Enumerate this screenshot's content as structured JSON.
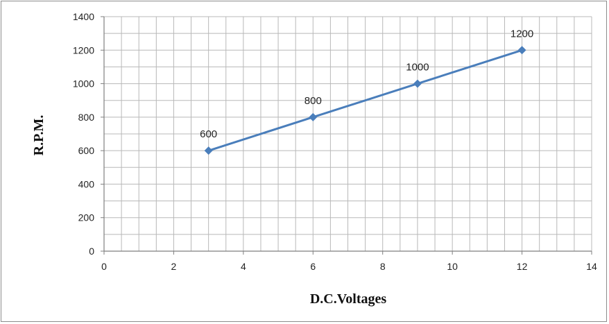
{
  "chart_data": {
    "type": "line",
    "xlabel": "D.C.Voltages",
    "ylabel": "R.P.M.",
    "xlim": [
      0,
      14
    ],
    "ylim": [
      0,
      1400
    ],
    "x_ticks": [
      0,
      2,
      4,
      6,
      8,
      10,
      12,
      14
    ],
    "y_ticks": [
      0,
      200,
      400,
      600,
      800,
      1000,
      1200,
      1400
    ],
    "minor_grid_x": 0.5,
    "minor_grid_y": 100,
    "grid": true,
    "series": [
      {
        "x": [
          3,
          6,
          9,
          12
        ],
        "values": [
          600,
          800,
          1000,
          1200
        ],
        "data_labels": [
          "600",
          "800",
          "1000",
          "1200"
        ],
        "color": "#4a7ebb",
        "marker": "diamond"
      }
    ]
  }
}
